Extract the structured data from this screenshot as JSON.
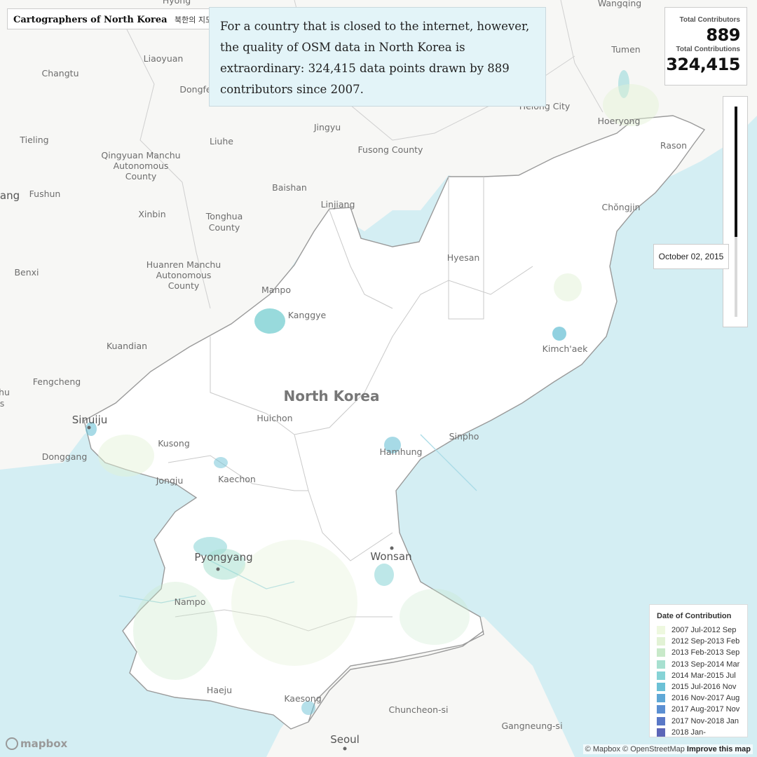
{
  "header": {
    "title": "Cartographers of North Korea",
    "subtitle_ko": "북한의 지도 제"
  },
  "story": {
    "text": "For a country that is closed to the internet, however, the quality of OSM data in North Korea is extraordinary: 324,415 data points drawn by 889 contributors since 2007."
  },
  "stats": {
    "contributors_label": "Total Contributors",
    "contributors_value": "889",
    "contributions_label": "Total Contributions",
    "contributions_value": "324,415"
  },
  "timeline": {
    "current_date": "October 02, 2015",
    "progress": 0.62
  },
  "legend": {
    "title": "Date of Contribution",
    "items": [
      {
        "label": "2007 Jul-2012 Sep",
        "color": "#eef8df"
      },
      {
        "label": "2012 Sep-2013 Feb",
        "color": "#e2f2d5"
      },
      {
        "label": "2013 Feb-2013 Sep",
        "color": "#c8e9c9"
      },
      {
        "label": "2013 Sep-2014 Mar",
        "color": "#a7e0d0"
      },
      {
        "label": "2014 Mar-2015 Jul",
        "color": "#86d3d6"
      },
      {
        "label": "2015 Jul-2016 Nov",
        "color": "#6cc1d6"
      },
      {
        "label": "2016 Nov-2017 Aug",
        "color": "#5fa8d6"
      },
      {
        "label": "2017 Aug-2017 Nov",
        "color": "#5b8fd2"
      },
      {
        "label": "2017 Nov-2018 Jan",
        "color": "#5a78c7"
      },
      {
        "label": "2018 Jan-",
        "color": "#5d66b8"
      }
    ]
  },
  "places": {
    "country": "North Korea",
    "wangqing": "Wangqing",
    "hyong": "Hyong",
    "tumen": "Tumen",
    "changtu": "Changtu",
    "liaoyuan": "Liaoyuan",
    "dongfe": "Dongfe",
    "helong": "Helong City",
    "hoeryong": "Hoeryong",
    "rason": "Rason",
    "jingyu": "Jingyu",
    "fusong": "Fusong County",
    "tieling": "Tieling",
    "liuhe": "Liuhe",
    "qingyuan1": "Qingyuan Manchu",
    "qingyuan2": "Autonomous",
    "qingyuan3": "County",
    "baishan": "Baishan",
    "linjiang": "Linjiang",
    "chongjin": "Chŏngjin",
    "ang": "ang",
    "fushun": "Fushun",
    "xinbin": "Xinbin",
    "tonghua1": "Tonghua",
    "tonghua2": "County",
    "hyesan": "Hyesan",
    "benxi": "Benxi",
    "huanren1": "Huanren Manchu",
    "huanren2": "Autonomous",
    "huanren3": "County",
    "manpo": "Manpo",
    "kanggye": "Kanggye",
    "kimchaek": "Kimch'aek",
    "kuandian": "Kuandian",
    "fengcheng": "Fengcheng",
    "hu": "hu",
    "s": "s",
    "sinuiju": "Sinuiju",
    "huichon": "Huichon",
    "kusong": "Kusong",
    "hamhung": "Hamhung",
    "sinpho": "Sinpho",
    "donggang": "Donggang",
    "jongju": "Jongju",
    "kaechon": "Kaechon",
    "pyongyang": "Pyongyang",
    "wonsan": "Wonsan",
    "nampo": "Nampo",
    "haeju": "Haeju",
    "kaesong": "Kaesong",
    "chuncheon": "Chuncheon-si",
    "gangneung": "Gangneung-si",
    "seoul": "Seoul"
  },
  "attribution": {
    "mapbox": "© Mapbox",
    "osm": "© OpenStreetMap",
    "improve": "Improve this map",
    "logo": "mapbox"
  },
  "colors": {
    "sea": "#d4eef3",
    "land": "#f6f6f4",
    "nk_land": "#ffffff",
    "border": "#8c8c8c",
    "highlight": "#6cc1d6"
  }
}
